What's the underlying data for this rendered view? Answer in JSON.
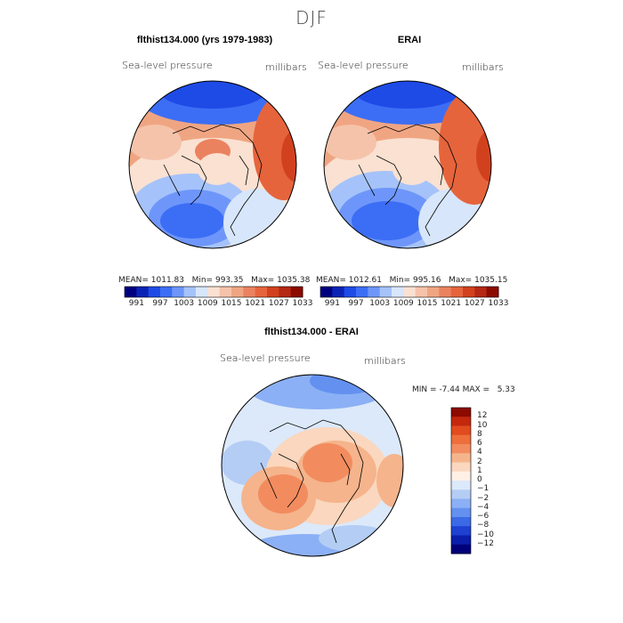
{
  "season_title": "DJF",
  "panels": [
    {
      "title": "flthist134.000 (yrs 1979-1983)",
      "variable": "Sea-level pressure",
      "units": "millibars",
      "mean_label": "MEAN=",
      "mean": "1011.83",
      "min_label": "Min=",
      "min": "993.35",
      "max_label": "Max=",
      "max": "1035.38"
    },
    {
      "title": "ERAI",
      "variable": "Sea-level pressure",
      "units": "millibars",
      "mean_label": "MEAN=",
      "mean": "1012.61",
      "min_label": "Min=",
      "min": "995.16",
      "max_label": "Max=",
      "max": "1035.15"
    }
  ],
  "field_colorbar": {
    "tick_labels": [
      "991",
      "997",
      "1003",
      "1009",
      "1015",
      "1021",
      "1027",
      "1033"
    ],
    "colors": [
      "#00007f",
      "#0a23b4",
      "#1e4be6",
      "#3c6ef5",
      "#6e96fa",
      "#a5c3fa",
      "#d7e6fa",
      "#fae1d2",
      "#f5c3aa",
      "#f0a582",
      "#eb825f",
      "#e6643c",
      "#d2411e",
      "#b42814",
      "#8c0a00"
    ]
  },
  "diff_panel": {
    "title": "flthist134.000 - ERAI",
    "variable": "Sea-level pressure",
    "units": "millibars",
    "min_label": "MIN =",
    "min": "-7.44",
    "max_label": "MAX =",
    "max": "5.33"
  },
  "diff_colorbar": {
    "tick_labels": [
      "12",
      "10",
      "8",
      "6",
      "4",
      "2",
      "1",
      "0",
      "−1",
      "−2",
      "−4",
      "−6",
      "−8",
      "−10",
      "−12"
    ],
    "colors": [
      "#8c0a00",
      "#c3280f",
      "#e14b1e",
      "#ee6e3c",
      "#f28c5f",
      "#f5b48c",
      "#fad7be",
      "#fff0e6",
      "#dce9fa",
      "#b4cdf5",
      "#8cb0f5",
      "#6490f0",
      "#3c69e6",
      "#1e41d2",
      "#0a1eaa",
      "#00007a"
    ]
  }
}
